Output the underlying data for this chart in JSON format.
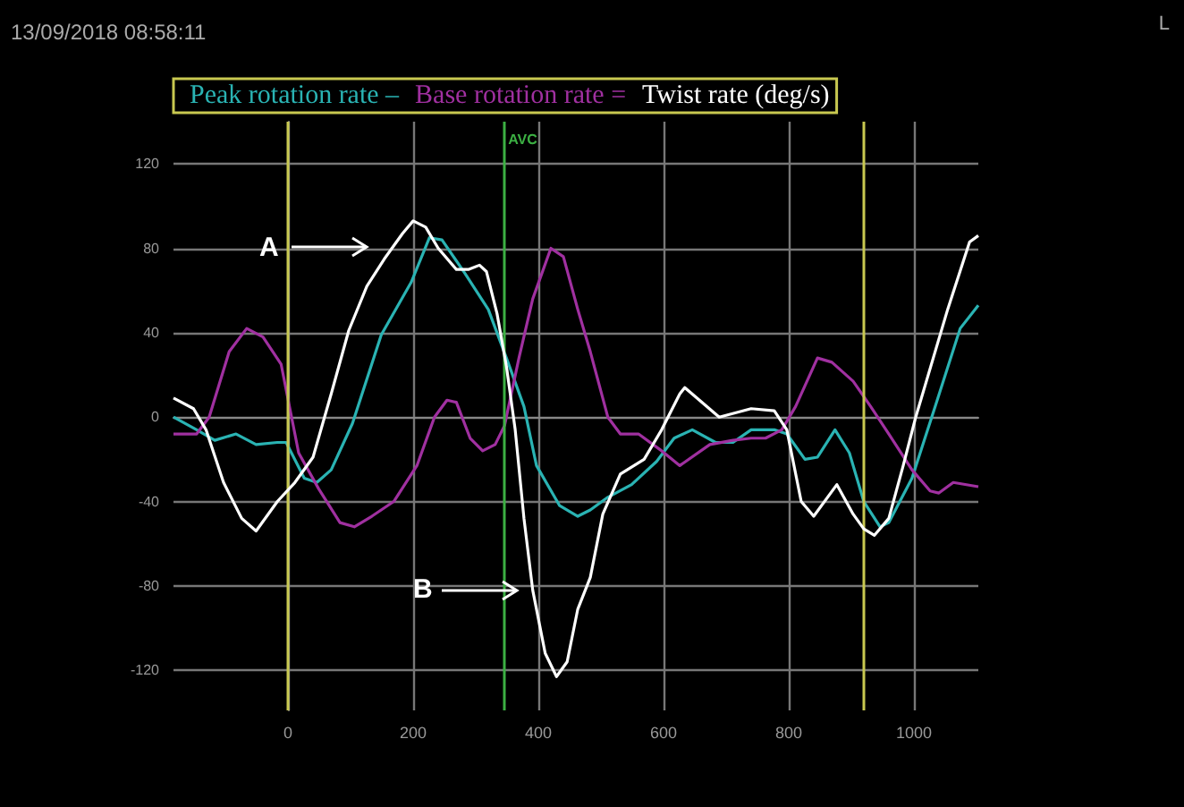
{
  "chart_data": {
    "type": "line",
    "series": [
      {
        "name": "Peak rotation rate –",
        "color": "#2ab3b3",
        "x": [
          -183,
          -146,
          -117,
          -83,
          -51,
          -17,
          -3,
          26,
          46,
          69,
          103,
          149,
          197,
          226,
          246,
          283,
          320,
          349,
          377,
          397,
          434,
          463,
          483,
          511,
          549,
          589,
          617,
          646,
          683,
          711,
          740,
          777,
          797,
          826,
          846,
          874,
          897,
          920,
          946,
          960,
          997,
          1034,
          1074,
          1103
        ],
        "values": [
          0,
          -6,
          -11,
          -8,
          -13,
          -12,
          -12,
          -29,
          -31,
          -25,
          -3,
          39,
          64,
          85,
          84,
          68,
          51,
          28,
          5,
          -23,
          -42,
          -47,
          -44,
          -38,
          -32,
          -21,
          -10,
          -6,
          -12,
          -12,
          -6,
          -6,
          -8,
          -20,
          -19,
          -6,
          -17,
          -40,
          -52,
          -50,
          -29,
          5,
          42,
          53
        ]
      },
      {
        "name": "Base rotation rate =",
        "color": "#a030a0",
        "x": [
          -183,
          -146,
          -126,
          -94,
          -66,
          -40,
          -11,
          17,
          49,
          83,
          106,
          134,
          169,
          206,
          234,
          254,
          269,
          291,
          311,
          331,
          346,
          369,
          391,
          420,
          440,
          463,
          483,
          511,
          531,
          560,
          597,
          626,
          674,
          711,
          740,
          763,
          789,
          811,
          846,
          869,
          903,
          931,
          960,
          997,
          1026,
          1040,
          1063,
          1103
        ],
        "values": [
          -8,
          -8,
          0,
          31,
          42,
          38,
          25,
          -17,
          -34,
          -50,
          -52,
          -47,
          -40,
          -23,
          0,
          8,
          7,
          -10,
          -16,
          -13,
          -4,
          28,
          56,
          80,
          76,
          51,
          31,
          0,
          -8,
          -8,
          -16,
          -23,
          -13,
          -11,
          -10,
          -10,
          -6,
          5,
          28,
          26,
          17,
          5,
          -8,
          -25,
          -35,
          -36,
          -31,
          -33
        ]
      },
      {
        "name": "Twist rate (deg/s)",
        "color": "#ffffff",
        "x": [
          -183,
          -151,
          -131,
          -103,
          -74,
          -51,
          -17,
          11,
          40,
          69,
          97,
          126,
          154,
          183,
          200,
          220,
          240,
          269,
          289,
          306,
          317,
          334,
          349,
          363,
          377,
          391,
          411,
          429,
          446,
          463,
          483,
          503,
          531,
          569,
          597,
          626,
          634,
          689,
          740,
          777,
          797,
          820,
          840,
          877,
          903,
          920,
          937,
          960,
          983,
          1003,
          1054,
          1089,
          1103
        ],
        "values": [
          9,
          4,
          -6,
          -31,
          -48,
          -54,
          -40,
          -31,
          -19,
          11,
          41,
          62,
          75,
          87,
          93,
          90,
          80,
          70,
          70,
          72,
          69,
          49,
          24,
          -6,
          -48,
          -82,
          -112,
          -123,
          -116,
          -91,
          -76,
          -46,
          -27,
          -20,
          -6,
          11,
          14,
          0,
          4,
          3,
          -6,
          -40,
          -47,
          -32,
          -46,
          -53,
          -56,
          -48,
          -23,
          0,
          51,
          83,
          86
        ]
      }
    ],
    "xlim": [
      -183,
      1103
    ],
    "xticks": [
      0,
      200,
      400,
      600,
      800,
      1000
    ],
    "ylim": [
      -139,
      140
    ],
    "yticks": [
      -120,
      -80,
      -40,
      0,
      40,
      80,
      120
    ],
    "grid": true,
    "legend": "top",
    "marker": "none",
    "ref_lines": [
      {
        "axis": "x",
        "value": 0,
        "label": null,
        "color": "#c8c850"
      },
      {
        "axis": "x",
        "value": 346,
        "label": "AVC",
        "color": "#3cb043"
      },
      {
        "axis": "x",
        "value": 920,
        "label": null,
        "color": "#c8c850"
      }
    ],
    "annotations": [
      "13/09/2018 08:58:11",
      "L",
      "A",
      "B"
    ]
  }
}
